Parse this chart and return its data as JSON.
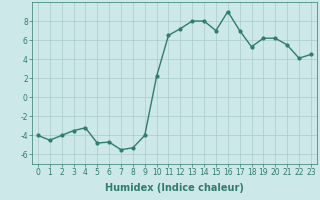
{
  "x": [
    0,
    1,
    2,
    3,
    4,
    5,
    6,
    7,
    8,
    9,
    10,
    11,
    12,
    13,
    14,
    15,
    16,
    17,
    18,
    19,
    20,
    21,
    22,
    23
  ],
  "y": [
    -4.0,
    -4.5,
    -4.0,
    -3.5,
    -3.2,
    -4.8,
    -4.7,
    -5.5,
    -5.3,
    -4.0,
    2.2,
    6.5,
    7.2,
    8.0,
    8.0,
    7.0,
    9.0,
    7.0,
    5.3,
    6.2,
    6.2,
    5.5,
    4.1,
    4.5
  ],
  "line_color": "#2e7d6e",
  "marker": "o",
  "marker_size": 2.0,
  "bg_color": "#cce8e8",
  "grid_color": "#aacccc",
  "tick_color": "#2e7d6e",
  "xlabel": "Humidex (Indice chaleur)",
  "xlabel_fontsize": 7,
  "xlim": [
    -0.5,
    23.5
  ],
  "ylim": [
    -7,
    10
  ],
  "yticks": [
    -6,
    -4,
    -2,
    0,
    2,
    4,
    6,
    8
  ],
  "xticks": [
    0,
    1,
    2,
    3,
    4,
    5,
    6,
    7,
    8,
    9,
    10,
    11,
    12,
    13,
    14,
    15,
    16,
    17,
    18,
    19,
    20,
    21,
    22,
    23
  ],
  "xtick_labels": [
    "0",
    "1",
    "2",
    "3",
    "4",
    "5",
    "6",
    "7",
    "8",
    "9",
    "10",
    "11",
    "12",
    "13",
    "14",
    "15",
    "16",
    "17",
    "18",
    "19",
    "20",
    "21",
    "22",
    "23"
  ],
  "tick_fontsize": 5.5,
  "line_width": 1.0
}
